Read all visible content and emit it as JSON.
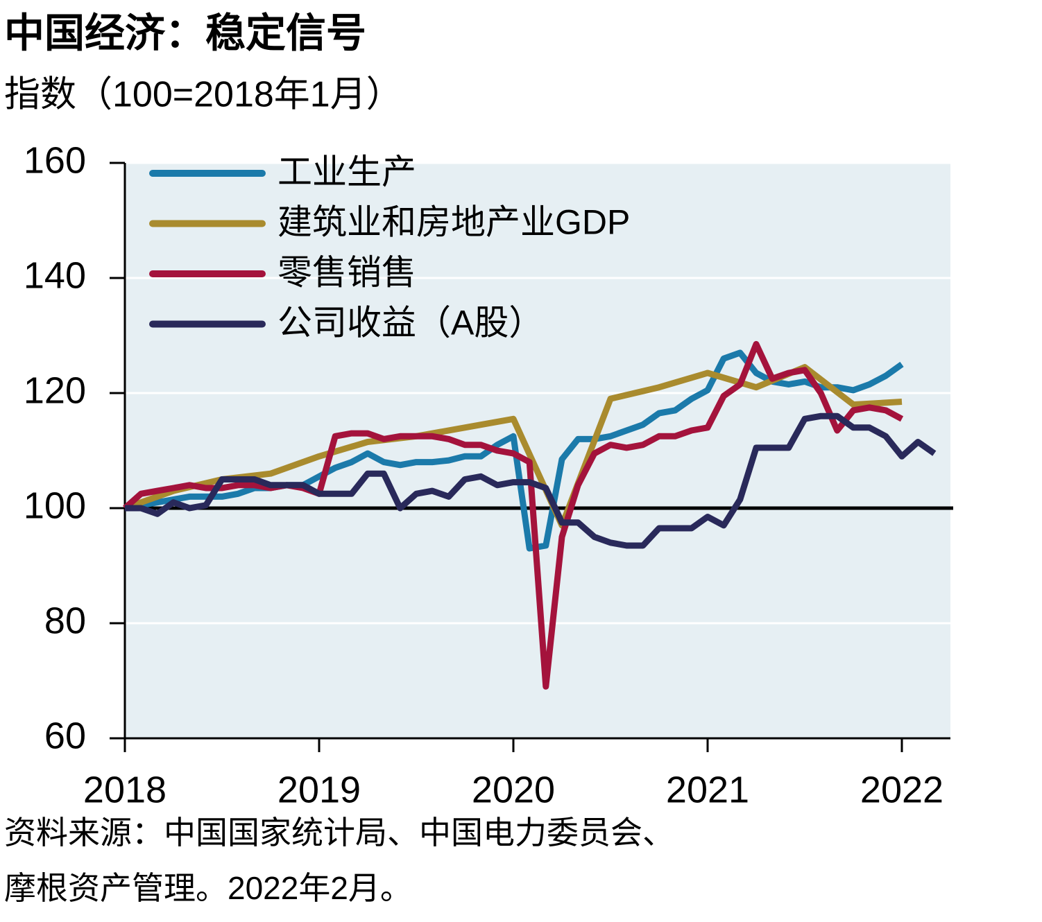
{
  "chart_data": {
    "type": "line",
    "title": "中国经济：稳定信号",
    "subtitle": "指数（100=2018年1月）",
    "source": [
      "资料来源：中国国家统计局、中国电力委员会、",
      "摩根资产管理。2022年2月。"
    ],
    "x": [
      2018,
      2018.083,
      2018.167,
      2018.25,
      2018.333,
      2018.417,
      2018.5,
      2018.583,
      2018.667,
      2018.75,
      2018.833,
      2018.917,
      2019,
      2019.083,
      2019.167,
      2019.25,
      2019.333,
      2019.417,
      2019.5,
      2019.583,
      2019.667,
      2019.75,
      2019.833,
      2019.917,
      2020,
      2020.083,
      2020.167,
      2020.25,
      2020.333,
      2020.417,
      2020.5,
      2020.583,
      2020.667,
      2020.75,
      2020.833,
      2020.917,
      2021,
      2021.083,
      2021.167,
      2021.25,
      2021.333,
      2021.417,
      2021.5,
      2021.583,
      2021.667,
      2021.75,
      2021.833,
      2021.917,
      2022,
      2022.083,
      2022.167
    ],
    "series": [
      {
        "name": "工业生产",
        "color": "#1b7aaa",
        "values": [
          100,
          100.5,
          101,
          101.5,
          102,
          102,
          102,
          102.5,
          103.5,
          103.5,
          104,
          104,
          105.5,
          107,
          108,
          109.5,
          108,
          107.5,
          108,
          108,
          108.3,
          109,
          109,
          111,
          112.5,
          93,
          93.5,
          108.5,
          112,
          112,
          112.5,
          113.5,
          114.5,
          116.5,
          117,
          119,
          120.5,
          126,
          127,
          123.5,
          122,
          121.5,
          122,
          121,
          121,
          120.5,
          121.5,
          123,
          125,
          null,
          null
        ]
      },
      {
        "name": "建筑业和房地产业GDP",
        "color": "#a98b2e",
        "x": [
          2018,
          2018.25,
          2018.5,
          2018.75,
          2019,
          2019.25,
          2019.5,
          2019.75,
          2020,
          2020.25,
          2020.5,
          2020.75,
          2021,
          2021.25,
          2021.5,
          2021.75,
          2022
        ],
        "values": [
          100,
          103,
          105,
          106,
          109,
          111.5,
          112.5,
          114,
          115.5,
          97,
          119,
          121,
          123.5,
          121,
          124.5,
          118,
          118.5
        ]
      },
      {
        "name": "零售销售",
        "color": "#a4133c",
        "values": [
          100,
          102.5,
          103,
          103.5,
          104,
          103.5,
          103.5,
          104,
          104,
          103.5,
          104,
          103.5,
          102.5,
          112.5,
          113,
          113,
          112,
          112.5,
          112.5,
          112.5,
          112,
          111,
          111,
          110,
          109.5,
          108,
          69,
          95,
          104,
          109.5,
          111,
          110.5,
          111,
          112.5,
          112.5,
          113.5,
          114,
          119.5,
          121.5,
          128.5,
          122.5,
          123.5,
          124,
          120,
          113.5,
          117,
          117.5,
          117,
          115.5,
          null,
          null
        ]
      },
      {
        "name": "公司收益（A股）",
        "color": "#29295a",
        "values": [
          100,
          100,
          99,
          101,
          100,
          100.5,
          105,
          105,
          105,
          104,
          104,
          104,
          102.5,
          102.5,
          102.5,
          106,
          106,
          100,
          102.5,
          103,
          102,
          105,
          105.5,
          104,
          104.5,
          104.5,
          103.5,
          97.5,
          97.5,
          95,
          94,
          93.5,
          93.5,
          96.5,
          96.5,
          96.5,
          98.5,
          97,
          101.5,
          110.5,
          110.5,
          110.5,
          115.5,
          116,
          116,
          114,
          114,
          112.5,
          109,
          111.5,
          109.5
        ]
      }
    ],
    "xlim": [
      2018,
      2022.25
    ],
    "xticks": [
      2018,
      2019,
      2020,
      2021,
      2022
    ],
    "ylim": [
      60,
      160
    ],
    "yticks": [
      60,
      80,
      100,
      120,
      140,
      160
    ],
    "reference_line": 100,
    "grid": true,
    "legend": "upper-left"
  }
}
